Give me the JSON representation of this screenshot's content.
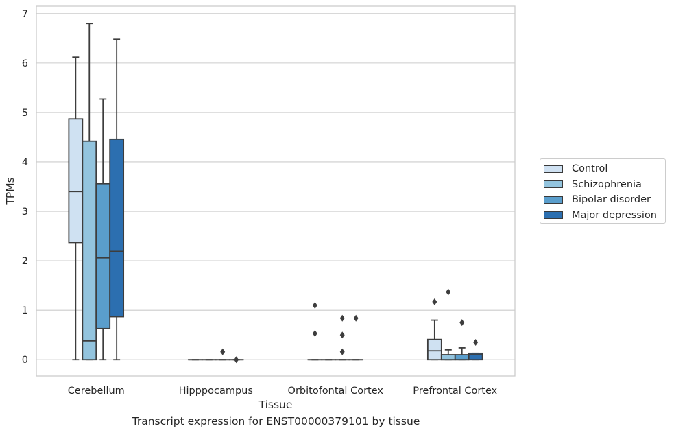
{
  "chart_data": {
    "type": "boxplot",
    "xlabel": "Tissue",
    "ylabel": "TPMs",
    "ylim": [
      -0.33,
      7.15
    ],
    "yticks": [
      0,
      1,
      2,
      3,
      4,
      5,
      6,
      7
    ],
    "grid": "horizontal",
    "legend_position": "right",
    "categories": [
      "Cerebellum",
      "Hipppocampus",
      "Orbitofontal Cortex",
      "Prefrontal Cortex"
    ],
    "series": [
      {
        "name": "Control",
        "color": "#cfe1f2",
        "boxes": [
          {
            "whislo": 0,
            "q1": 2.37,
            "med": 3.4,
            "q3": 4.87,
            "whishi": 6.12,
            "fliers": []
          },
          {
            "whislo": 0,
            "q1": 0,
            "med": 0,
            "q3": 0,
            "whishi": 0,
            "fliers": []
          },
          {
            "whislo": 0,
            "q1": 0,
            "med": 0,
            "q3": 0,
            "whishi": 0,
            "fliers": [
              0.53,
              1.1
            ]
          },
          {
            "whislo": 0,
            "q1": 0,
            "med": 0.18,
            "q3": 0.41,
            "whishi": 0.8,
            "fliers": [
              1.17
            ]
          }
        ]
      },
      {
        "name": "Schizophrenia",
        "color": "#93c4de",
        "boxes": [
          {
            "whislo": 0,
            "q1": 0,
            "med": 0.38,
            "q3": 4.42,
            "whishi": 6.8,
            "fliers": []
          },
          {
            "whislo": 0,
            "q1": 0,
            "med": 0,
            "q3": 0,
            "whishi": 0,
            "fliers": []
          },
          {
            "whislo": 0,
            "q1": 0,
            "med": 0,
            "q3": 0,
            "whishi": 0,
            "fliers": []
          },
          {
            "whislo": 0,
            "q1": 0,
            "med": 0,
            "q3": 0.1,
            "whishi": 0.2,
            "fliers": [
              1.37
            ]
          }
        ]
      },
      {
        "name": "Bipolar disorder",
        "color": "#5a9ecc",
        "boxes": [
          {
            "whislo": 0,
            "q1": 0.63,
            "med": 2.06,
            "q3": 3.56,
            "whishi": 5.27,
            "fliers": []
          },
          {
            "whislo": 0,
            "q1": 0,
            "med": 0,
            "q3": 0,
            "whishi": 0,
            "fliers": [
              0.16
            ]
          },
          {
            "whislo": 0,
            "q1": 0,
            "med": 0,
            "q3": 0,
            "whishi": 0,
            "fliers": [
              0.16,
              0.5,
              0.84
            ]
          },
          {
            "whislo": 0,
            "q1": 0,
            "med": 0,
            "q3": 0.1,
            "whishi": 0.24,
            "fliers": [
              0.75
            ]
          }
        ]
      },
      {
        "name": "Major depression",
        "color": "#2c6fb0",
        "boxes": [
          {
            "whislo": 0,
            "q1": 0.87,
            "med": 2.19,
            "q3": 4.46,
            "whishi": 6.48,
            "fliers": []
          },
          {
            "whislo": 0,
            "q1": 0,
            "med": 0,
            "q3": 0,
            "whishi": 0,
            "fliers": [
              0
            ]
          },
          {
            "whislo": 0,
            "q1": 0,
            "med": 0,
            "q3": 0,
            "whishi": 0,
            "fliers": [
              0.84
            ]
          },
          {
            "whislo": 0,
            "q1": 0,
            "med": 0.1,
            "q3": 0.13,
            "whishi": 0.13,
            "fliers": [
              0.35
            ]
          }
        ]
      }
    ]
  },
  "caption": "Transcript expression for ENST00000379101 by tissue"
}
